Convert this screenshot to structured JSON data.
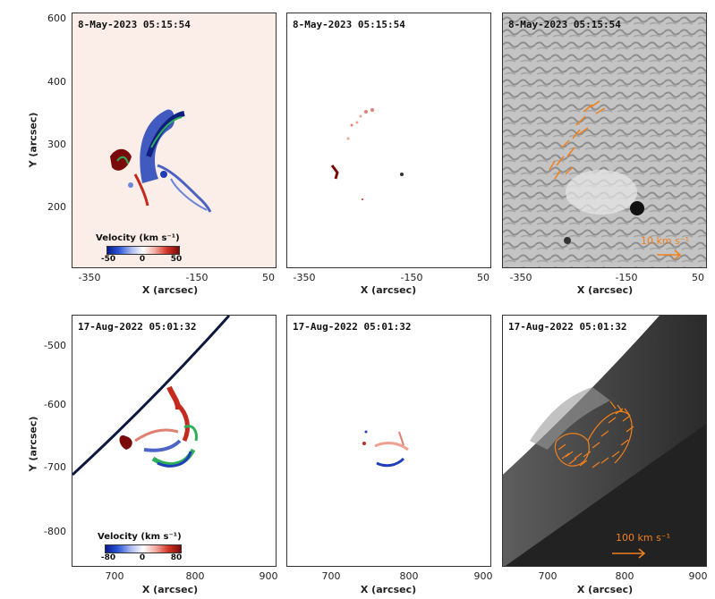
{
  "top_row": {
    "timestamp": "8-May-2023 05:15:54",
    "y_label": "Y (arcsec)",
    "x_label": "X (arcsec)",
    "y_ticks": [
      "600",
      "400",
      "300",
      "200"
    ],
    "x_ticks": [
      "-350",
      "-150",
      "50"
    ],
    "colorbar": {
      "title": "Velocity (km s⁻¹)",
      "ticks": [
        "-50",
        "0",
        "50"
      ]
    },
    "arrow_scale": "10 km s⁻¹"
  },
  "bottom_row": {
    "timestamp": "17-Aug-2022 05:01:32",
    "y_label": "Y (arcsec)",
    "x_label": "X (arcsec)",
    "y_ticks": [
      "-500",
      "-600",
      "-700",
      "-800"
    ],
    "x_ticks": [
      "700",
      "800",
      "900"
    ],
    "colorbar": {
      "title": "Velocity (km s⁻¹)",
      "ticks": [
        "-80",
        "0",
        "80"
      ]
    },
    "arrow_scale": "100 km s⁻¹"
  },
  "colors": {
    "arrow": "#f0801c",
    "redshift": "#c42a1e",
    "blueshift": "#1f3fb8",
    "green": "#2fae5a"
  }
}
